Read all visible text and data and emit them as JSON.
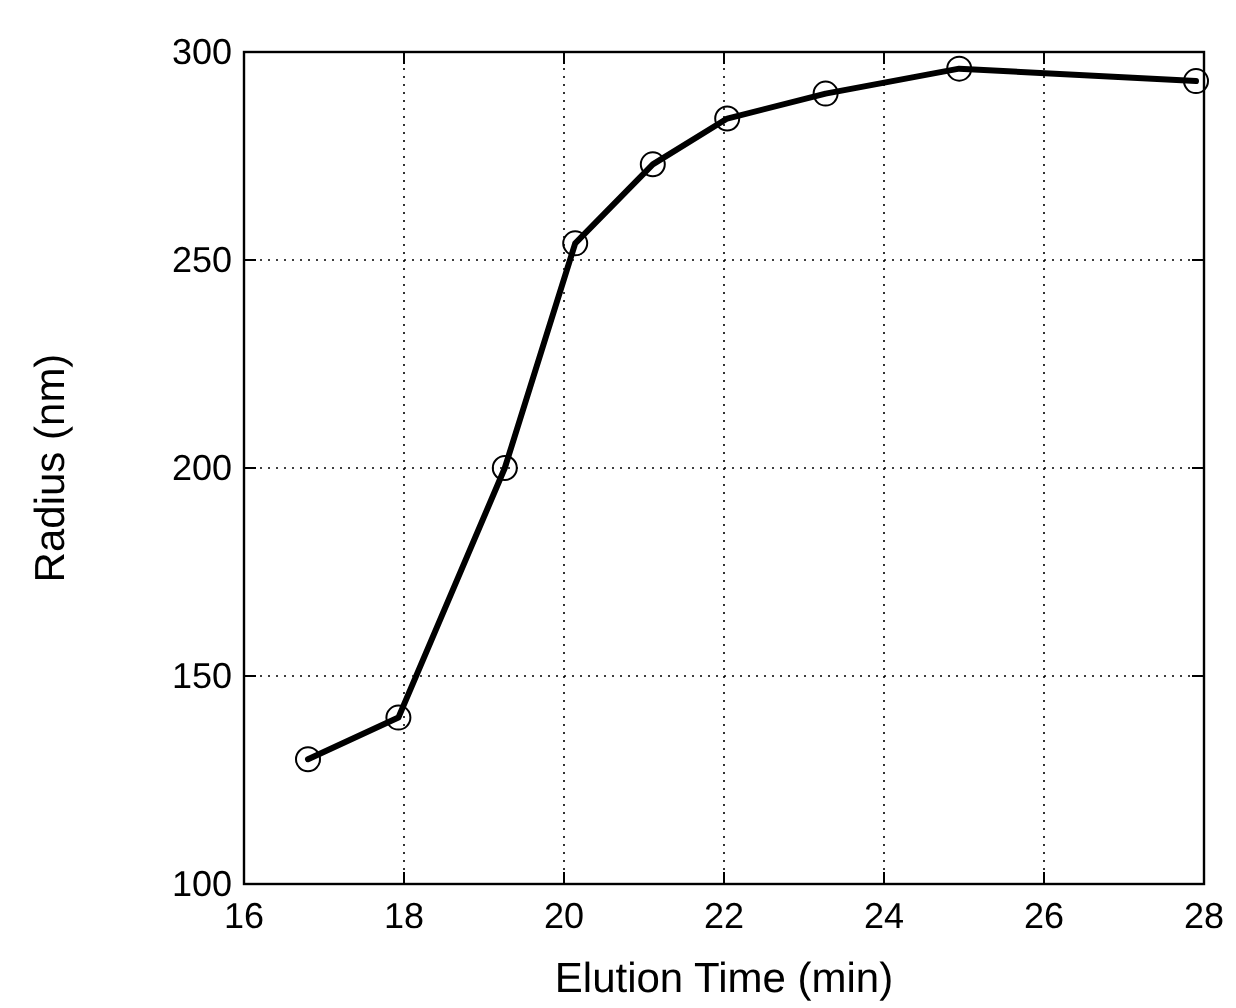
{
  "chart_data": {
    "type": "line",
    "xlabel": "Elution Time (min)",
    "ylabel": "Radius (nm)",
    "x": [
      16.8,
      17.93,
      19.26,
      20.14,
      21.11,
      22.04,
      23.27,
      24.94,
      27.9
    ],
    "series": [
      {
        "color": "#000000",
        "values": [
          130,
          140,
          200,
          254,
          273,
          284,
          290,
          296,
          293
        ]
      }
    ],
    "xlim": [
      16,
      28
    ],
    "xticks": [
      16,
      18,
      20,
      22,
      24,
      26,
      28
    ],
    "ylim": [
      100,
      300
    ],
    "yticks": [
      100,
      150,
      200,
      250,
      300
    ],
    "grid": true,
    "marker": "circle",
    "line_style": "solid"
  }
}
